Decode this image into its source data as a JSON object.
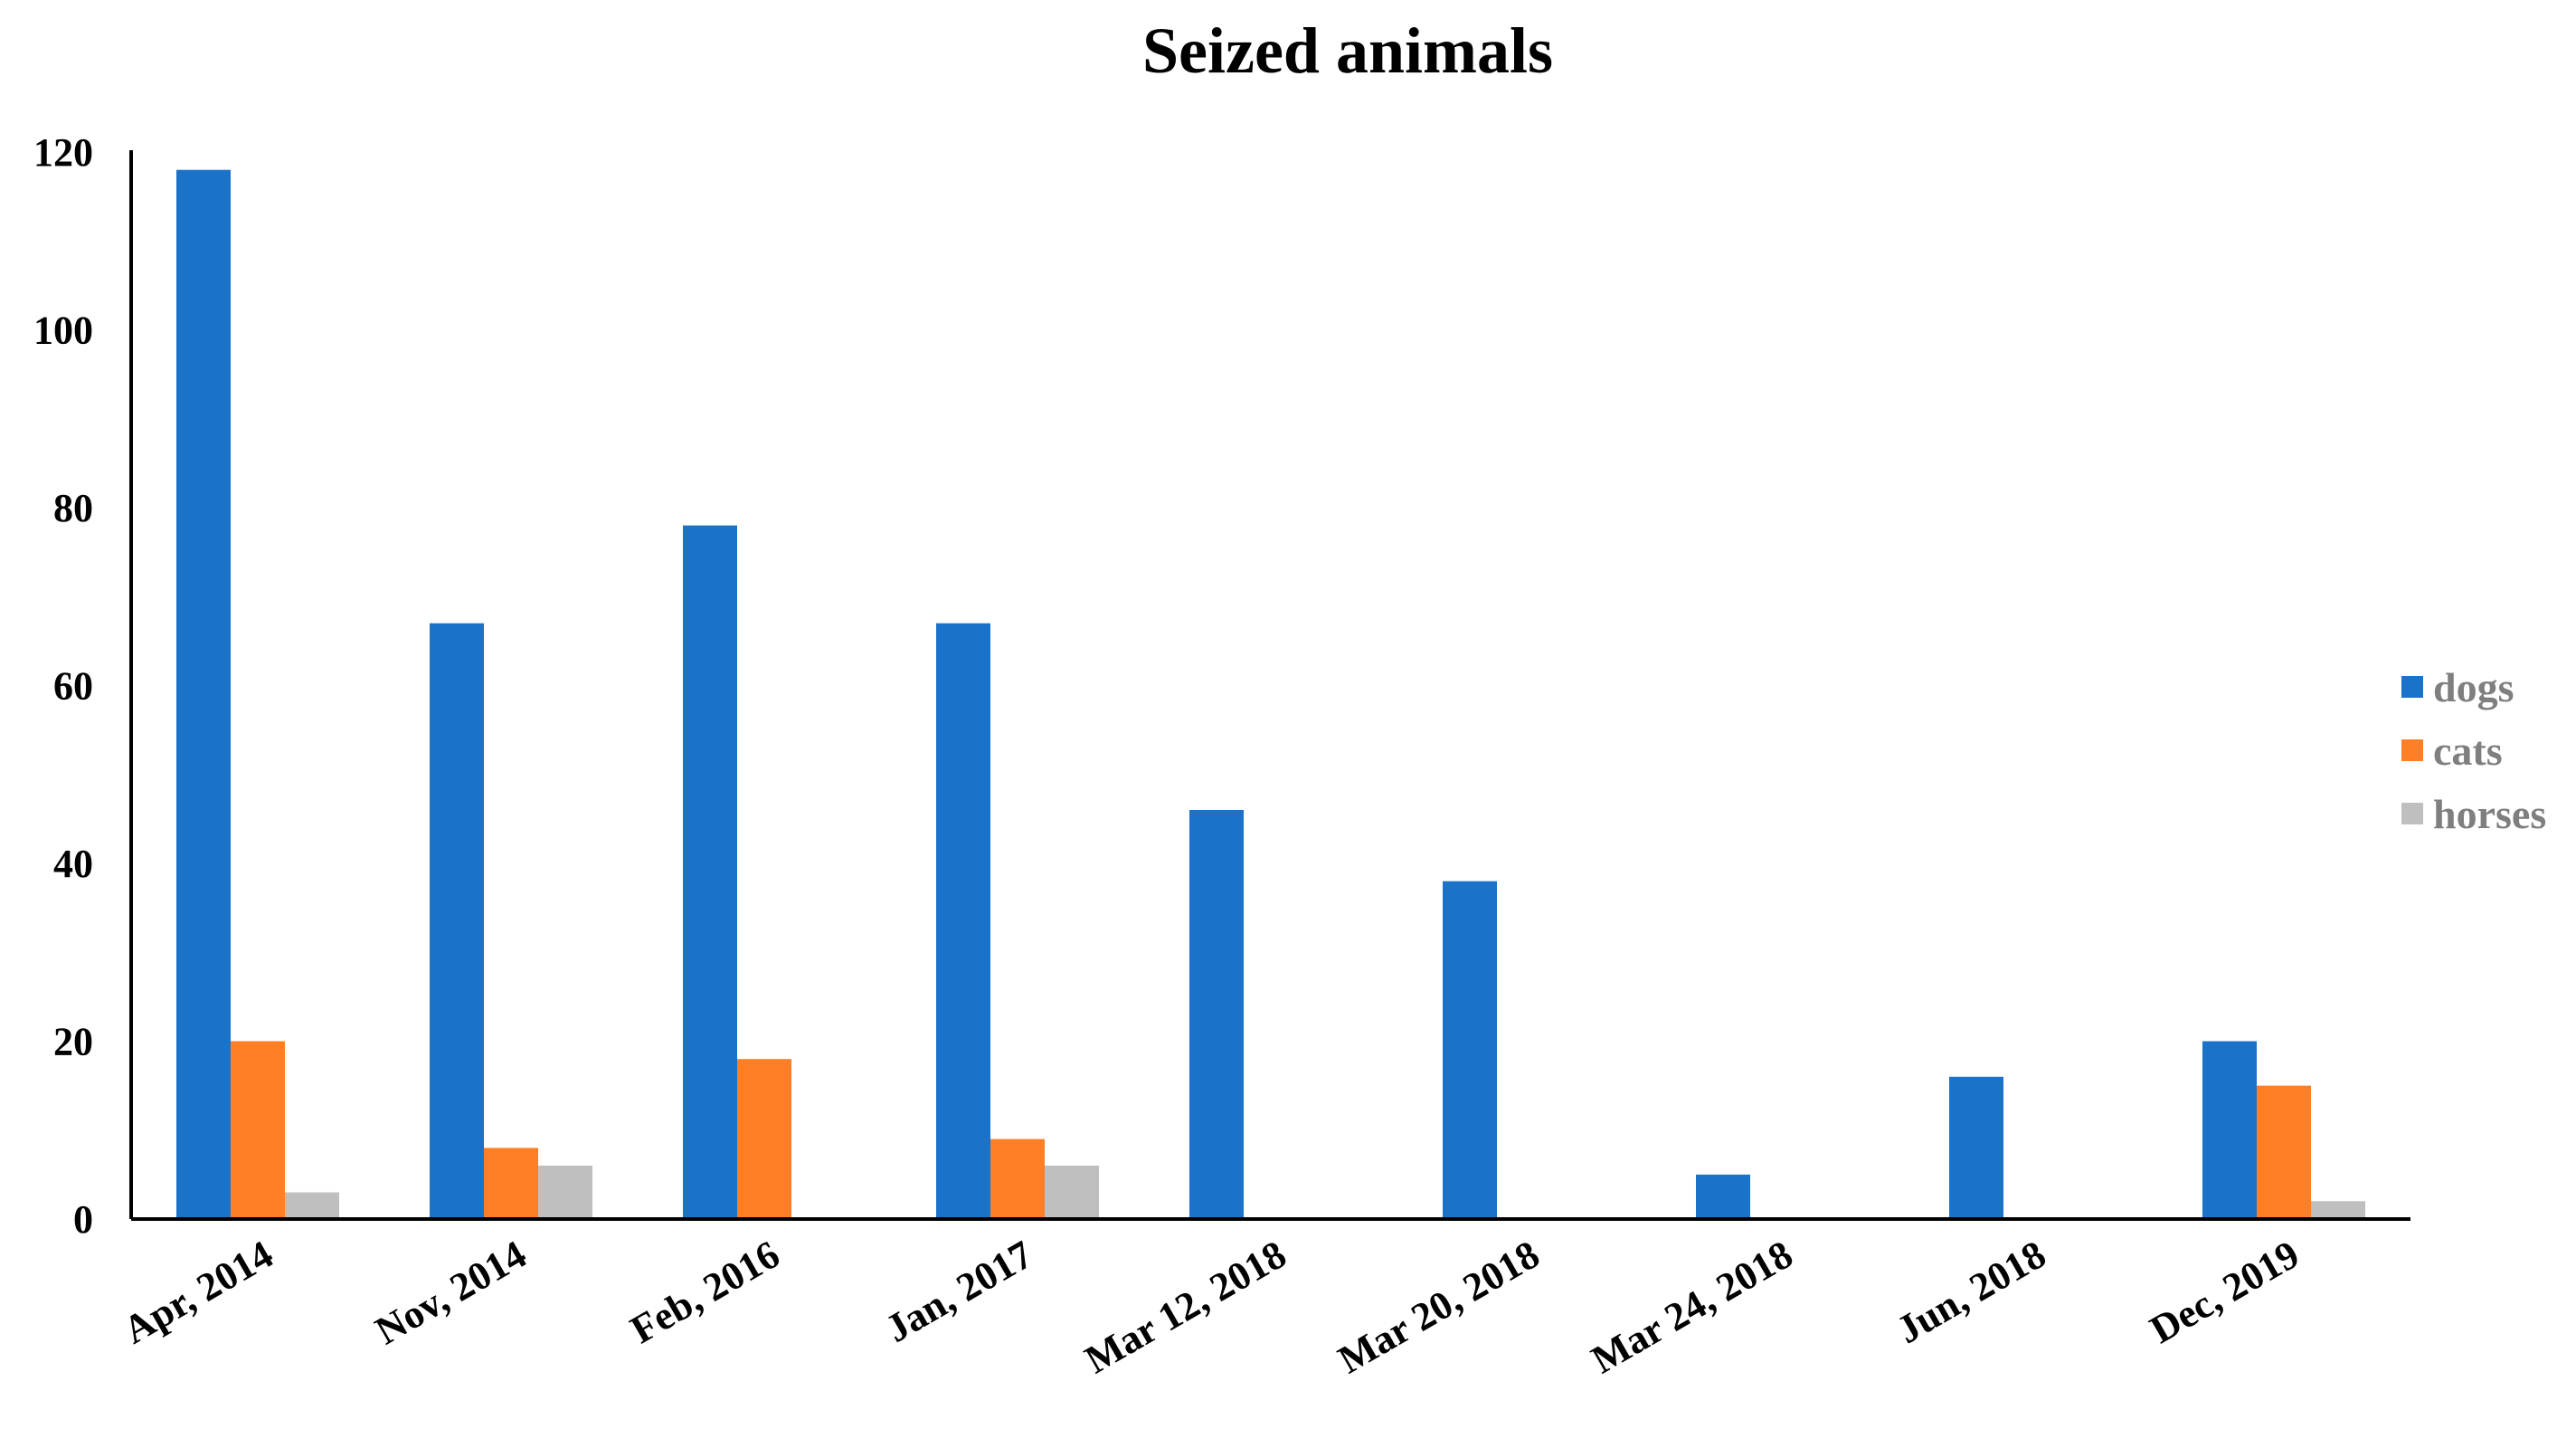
{
  "chart_data": {
    "type": "bar",
    "title": "Seized animals",
    "xlabel": "",
    "ylabel": "",
    "ylim": [
      0,
      120
    ],
    "yticks": [
      "0",
      "20",
      "40",
      "60",
      "80",
      "100",
      "120"
    ],
    "grid": false,
    "legend_position": "right",
    "categories": [
      "Apr, 2014",
      "Nov, 2014",
      "Feb, 2016",
      "Jan, 2017",
      "Mar 12, 2018",
      "Mar 20, 2018",
      "Mar 24, 2018",
      "Jun, 2018",
      "Dec, 2019"
    ],
    "series": [
      {
        "name": "dogs",
        "color": "#1a73c9",
        "values": [
          118,
          67,
          78,
          67,
          46,
          38,
          5,
          16,
          20
        ]
      },
      {
        "name": "cats",
        "color": "#ff7f27",
        "values": [
          20,
          8,
          18,
          9,
          0,
          0,
          0,
          0,
          15
        ]
      },
      {
        "name": "horses",
        "color": "#bfbfbf",
        "values": [
          3,
          6,
          0,
          6,
          0,
          0,
          0,
          0,
          2
        ]
      }
    ]
  }
}
